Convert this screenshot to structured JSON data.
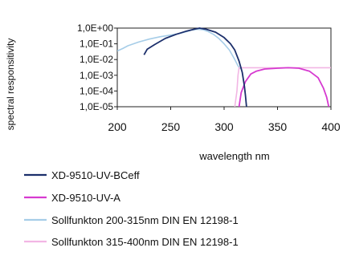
{
  "chart_data": {
    "type": "line",
    "xlabel": "wavelength nm",
    "ylabel": "spectral responsitivity",
    "x_ticks": [
      "200",
      "250",
      "300",
      "350",
      "400"
    ],
    "xlim": [
      200,
      400
    ],
    "y_ticks": [
      "1,0E-05",
      "1,0E-04",
      "1,0E-03",
      "1,0E-02",
      "1,0E-01",
      "1,0E+00"
    ],
    "y_scale": "log",
    "ylim": [
      1e-05,
      1
    ],
    "grid": false,
    "legend_position": "bottom",
    "series": [
      {
        "name": "XD-9510-UV-BCeff",
        "color": "#1c2f6b",
        "points": [
          [
            225,
            0.02
          ],
          [
            228,
            0.045
          ],
          [
            235,
            0.09
          ],
          [
            245,
            0.22
          ],
          [
            255,
            0.4
          ],
          [
            265,
            0.65
          ],
          [
            272,
            0.85
          ],
          [
            277,
            1.0
          ],
          [
            283,
            0.85
          ],
          [
            292,
            0.55
          ],
          [
            300,
            0.25
          ],
          [
            306,
            0.1
          ],
          [
            310,
            0.04
          ],
          [
            314,
            0.008
          ],
          [
            317,
            0.0015
          ],
          [
            319,
            0.0002
          ],
          [
            320,
            5e-05
          ],
          [
            321,
            1e-05
          ]
        ]
      },
      {
        "name": "XD-9510-UV-A",
        "color": "#d63ad0",
        "points": [
          [
            314,
            1e-05
          ],
          [
            316,
            8e-05
          ],
          [
            320,
            0.0004
          ],
          [
            325,
            0.0012
          ],
          [
            330,
            0.0018
          ],
          [
            338,
            0.0025
          ],
          [
            350,
            0.0028
          ],
          [
            360,
            0.003
          ],
          [
            370,
            0.0028
          ],
          [
            380,
            0.0018
          ],
          [
            388,
            0.0007
          ],
          [
            393,
            0.00015
          ],
          [
            396,
            4e-05
          ],
          [
            398,
            1e-05
          ]
        ]
      },
      {
        "name": "Sollfunkton 200-315nm DIN EN 12198-1",
        "color": "#a6cde8",
        "points": [
          [
            200,
            0.035
          ],
          [
            205,
            0.05
          ],
          [
            210,
            0.075
          ],
          [
            220,
            0.13
          ],
          [
            230,
            0.2
          ],
          [
            240,
            0.28
          ],
          [
            250,
            0.36
          ],
          [
            258,
            0.45
          ],
          [
            265,
            0.6
          ],
          [
            270,
            0.75
          ],
          [
            275,
            0.85
          ],
          [
            280,
            0.8
          ],
          [
            285,
            0.6
          ],
          [
            290,
            0.4
          ],
          [
            295,
            0.22
          ],
          [
            300,
            0.1
          ],
          [
            305,
            0.04
          ],
          [
            310,
            0.01
          ],
          [
            313,
            0.004
          ],
          [
            315,
            0.0025
          ]
        ]
      },
      {
        "name": "Sollfunkton 315-400nm DIN EN 12198-1",
        "color": "#f2b6e4",
        "points": [
          [
            310,
            1e-05
          ],
          [
            312,
            0.0001
          ],
          [
            313,
            0.001
          ],
          [
            314,
            0.003
          ],
          [
            318,
            0.003
          ],
          [
            330,
            0.003
          ],
          [
            350,
            0.003
          ],
          [
            370,
            0.003
          ],
          [
            390,
            0.003
          ],
          [
            400,
            0.003
          ]
        ]
      }
    ]
  }
}
